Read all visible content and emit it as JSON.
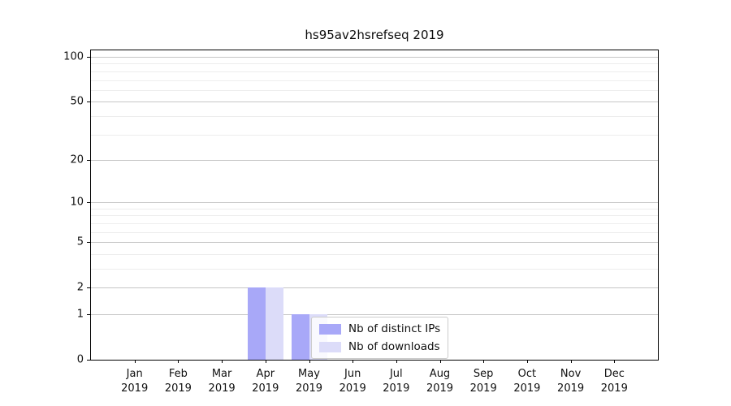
{
  "chart_data": {
    "type": "bar",
    "title": "hs95av2hsrefseq 2019",
    "categories": [
      "Jan 2019",
      "Feb 2019",
      "Mar 2019",
      "Apr 2019",
      "May 2019",
      "Jun 2019",
      "Jul 2019",
      "Aug 2019",
      "Sep 2019",
      "Oct 2019",
      "Nov 2019",
      "Dec 2019"
    ],
    "series": [
      {
        "name": "Nb of distinct IPs",
        "color": "#a8a8f8",
        "values": [
          0,
          0,
          0,
          2,
          1,
          0,
          0,
          0,
          0,
          0,
          0,
          0
        ]
      },
      {
        "name": "Nb of downloads",
        "color": "#dcdcf9",
        "values": [
          0,
          0,
          0,
          2,
          1,
          0,
          0,
          0,
          0,
          0,
          0,
          0
        ]
      }
    ],
    "xlabel": "",
    "ylabel": "",
    "yscale": "symlog",
    "y_major_ticks": [
      0,
      1,
      2,
      5,
      10,
      20,
      50,
      100
    ],
    "y_minor_gridlines": [
      3,
      4,
      6,
      7,
      8,
      9,
      30,
      40,
      60,
      70,
      80,
      90
    ],
    "ylim": [
      0,
      110
    ],
    "grid": true,
    "legend_position": "inside lower-center",
    "colors": {
      "major_grid": "#c6c6c6",
      "minor_grid": "#ededed",
      "axis": "#000000",
      "background": "#ffffff"
    }
  }
}
